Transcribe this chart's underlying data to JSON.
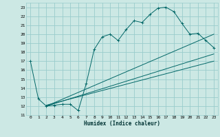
{
  "xlabel": "Humidex (Indice chaleur)",
  "bg_color": "#cce8e4",
  "grid_color": "#99cccc",
  "line_color": "#006666",
  "xlim": [
    -0.5,
    23.5
  ],
  "ylim": [
    11,
    23.5
  ],
  "yticks": [
    11,
    12,
    13,
    14,
    15,
    16,
    17,
    18,
    19,
    20,
    21,
    22,
    23
  ],
  "xticks": [
    0,
    1,
    2,
    3,
    4,
    5,
    6,
    7,
    8,
    9,
    10,
    11,
    12,
    13,
    14,
    15,
    16,
    17,
    18,
    19,
    20,
    21,
    22,
    23
  ],
  "series1_x": [
    0,
    1,
    2,
    3,
    4,
    5,
    6,
    7,
    8,
    9,
    10,
    11,
    12,
    13,
    14,
    15,
    16,
    17,
    18,
    19,
    20,
    21,
    22,
    23
  ],
  "series1_y": [
    17.0,
    12.8,
    12.0,
    12.1,
    12.2,
    12.2,
    11.5,
    14.5,
    18.3,
    19.7,
    20.0,
    19.3,
    20.5,
    21.5,
    21.3,
    22.2,
    22.9,
    23.0,
    22.5,
    21.2,
    20.0,
    20.1,
    19.3,
    18.5
  ],
  "series2_x": [
    2,
    23
  ],
  "series2_y": [
    12.0,
    20.0
  ],
  "series3_x": [
    2,
    23
  ],
  "series3_y": [
    12.0,
    17.8
  ],
  "series4_x": [
    2,
    23
  ],
  "series4_y": [
    12.1,
    17.0
  ]
}
